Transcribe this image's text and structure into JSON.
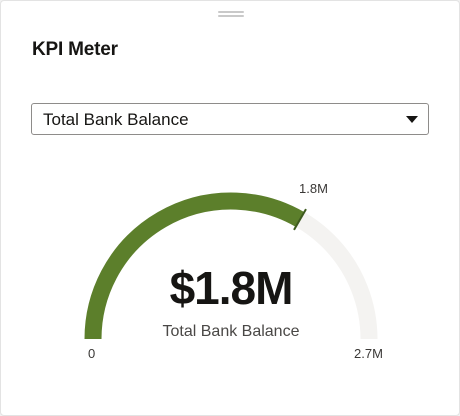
{
  "card": {
    "title": "KPI Meter"
  },
  "selector": {
    "selected": "Total Bank Balance"
  },
  "gauge": {
    "value_label": "$1.8M",
    "metric_label": "Total Bank Balance",
    "min_label": "0",
    "max_label": "2.7M",
    "reference_label": "1.8M",
    "min": 0,
    "max": 2.7,
    "value": 1.8,
    "reference": 1.8,
    "unit": "M",
    "colors": {
      "fill": "#5c7f2b",
      "track": "#f4f3f1",
      "reference_marker": "#3d5a1e"
    }
  }
}
